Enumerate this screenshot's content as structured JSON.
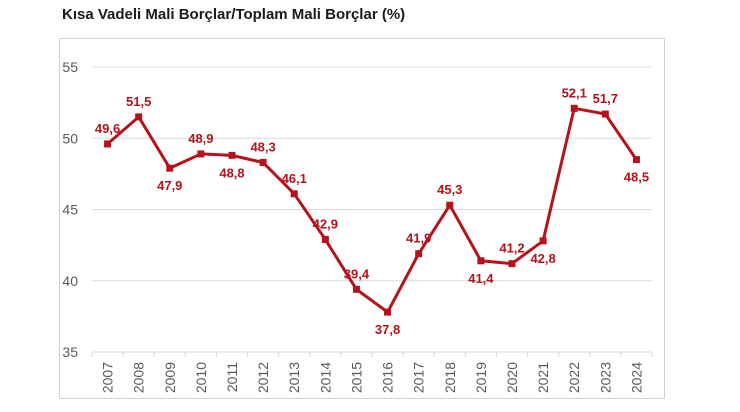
{
  "title": "Kısa Vadeli Mali Borçlar/Toplam Mali Borçlar (%)",
  "colors": {
    "series": "#b5121b",
    "grid": "#d9d9d9",
    "axis_text": "#595959"
  },
  "chart_data": {
    "type": "line",
    "title": "Kısa Vadeli Mali Borçlar/Toplam Mali Borçlar (%)",
    "x": [
      "2007",
      "2008",
      "2009",
      "2010",
      "2011",
      "2012",
      "2013",
      "2014",
      "2015",
      "2016",
      "2017",
      "2018",
      "2019",
      "2020",
      "2021",
      "2022",
      "2023",
      "2024"
    ],
    "series": [
      {
        "values": [
          49.6,
          51.5,
          47.9,
          48.9,
          48.8,
          48.3,
          46.1,
          42.9,
          39.4,
          37.8,
          41.9,
          45.3,
          41.4,
          41.2,
          42.8,
          52.1,
          51.7,
          48.5
        ]
      }
    ],
    "data_labels": [
      "49,6",
      "51,5",
      "47,9",
      "48,9",
      "48,8",
      "48,3",
      "46,1",
      "42,9",
      "39,4",
      "37,8",
      "41,9",
      "45,3",
      "41,4",
      "41,2",
      "42,8",
      "52,1",
      "51,7",
      "48,5"
    ],
    "yticks": [
      35,
      40,
      45,
      50,
      55
    ],
    "ylim": [
      35,
      55
    ],
    "grid": true,
    "legend": "none"
  }
}
